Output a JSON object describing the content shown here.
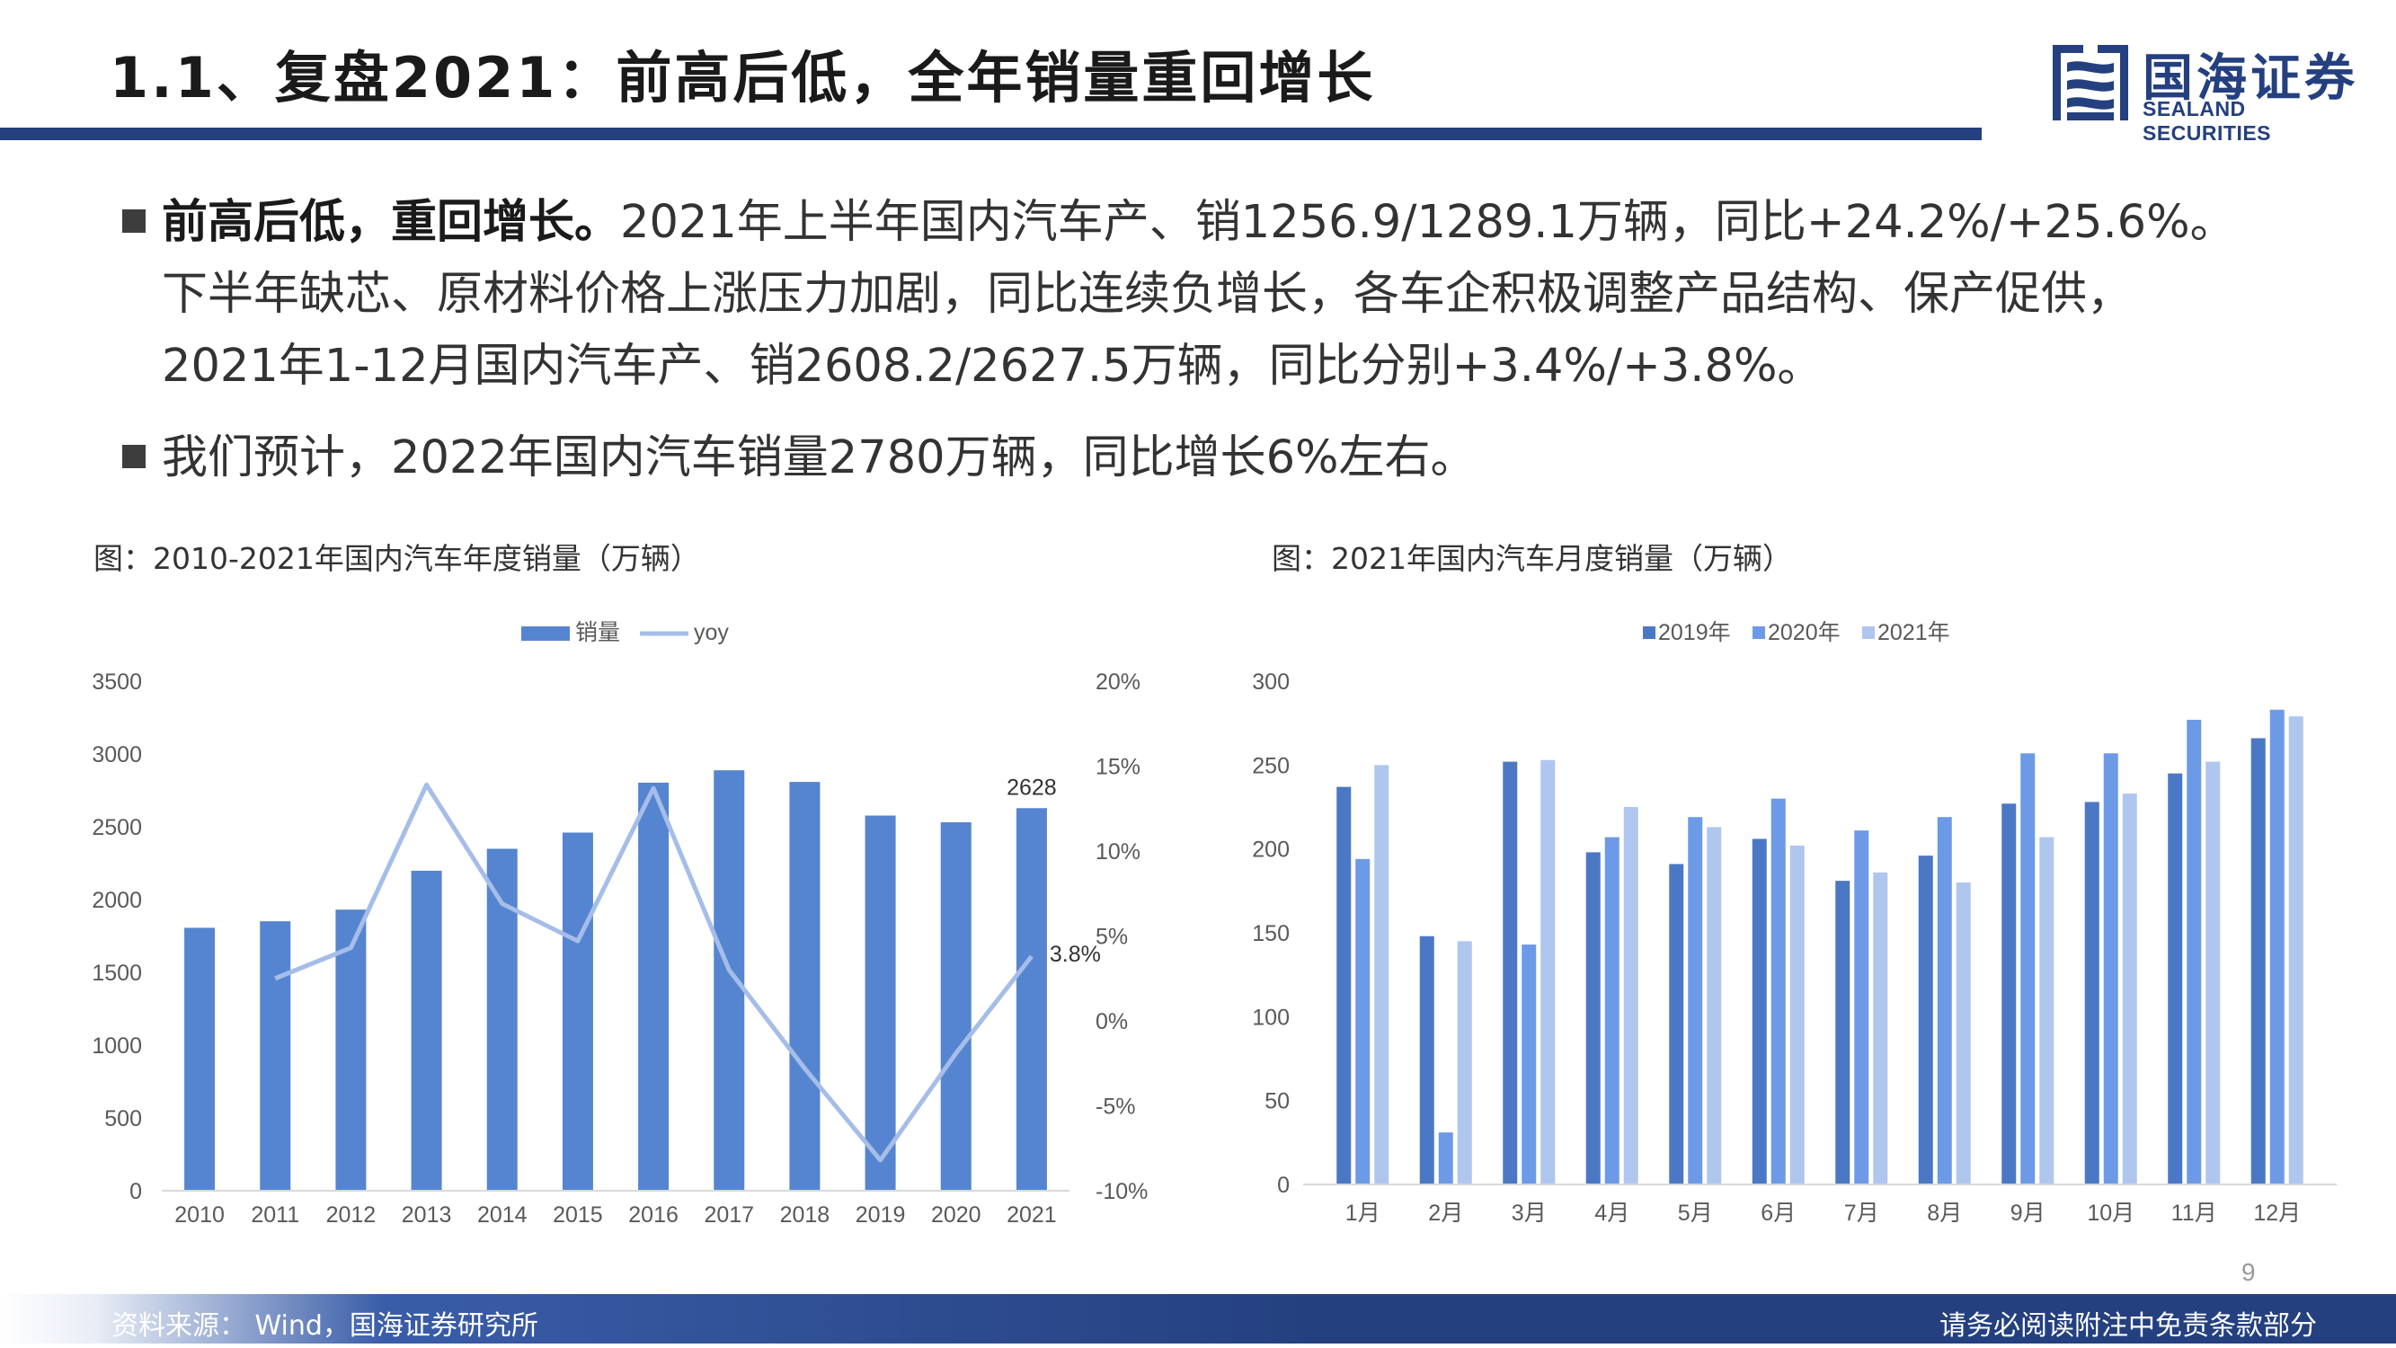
{
  "header": {
    "title": "1.1、复盘2021：前高后低，全年销量重回增长",
    "logo_cn": "国海证券",
    "logo_en": "SEALAND SECURITIES"
  },
  "bullets": [
    {
      "lead": "前高后低，重回增长。",
      "lines": [
        "2021年上半年国内汽车产、销1256.9/1289.1万辆，同比+24.2%/+25.6%。",
        "下半年缺芯、原材料价格上涨压力加剧，同比连续负增长，各车企积极调整产品结构、保产促供，",
        "2021年1-12月国内汽车产、销2608.2/2627.5万辆，同比分别+3.4%/+3.8%。"
      ]
    },
    {
      "lead": "",
      "lines": [
        "我们预计，2022年国内汽车销量2780万辆，同比增长6%左右。"
      ]
    }
  ],
  "chart_data": [
    {
      "type": "bar",
      "title": "图：2010-2021年国内汽车年度销量（万辆）",
      "categories": [
        "2010",
        "2011",
        "2012",
        "2013",
        "2014",
        "2015",
        "2016",
        "2017",
        "2018",
        "2019",
        "2020",
        "2021"
      ],
      "series": [
        {
          "name": "销量",
          "kind": "bar",
          "axis": "left",
          "color": "#5585d0",
          "values": [
            1806,
            1851,
            1931,
            2198,
            2349,
            2460,
            2803,
            2888,
            2808,
            2577,
            2531,
            2628
          ]
        },
        {
          "name": "yoy",
          "kind": "line",
          "axis": "right",
          "color": "#a5bde8",
          "values": [
            null,
            2.5,
            4.3,
            13.9,
            6.9,
            4.7,
            13.7,
            3.0,
            -2.8,
            -8.2,
            -1.9,
            3.8
          ]
        }
      ],
      "yleft": {
        "min": 0,
        "max": 3500,
        "ticks": [
          "0",
          "500",
          "1000",
          "1500",
          "2000",
          "2500",
          "3000",
          "3500"
        ]
      },
      "yright": {
        "min": -10,
        "max": 20,
        "ticks": [
          "-10%",
          "-5%",
          "0%",
          "5%",
          "10%",
          "15%",
          "20%"
        ]
      },
      "data_labels": [
        {
          "series": "销量",
          "index": 11,
          "text": "2628"
        },
        {
          "series": "yoy",
          "index": 11,
          "text": "3.8%"
        }
      ],
      "legend": "top-center",
      "grid": false
    },
    {
      "type": "bar",
      "title": "图：2021年国内汽车月度销量（万辆）",
      "categories": [
        "1月",
        "2月",
        "3月",
        "4月",
        "5月",
        "6月",
        "7月",
        "8月",
        "9月",
        "10月",
        "11月",
        "12月"
      ],
      "series": [
        {
          "name": "2019年",
          "color": "#4a78c4",
          "values": [
            237,
            148,
            252,
            198,
            191,
            206,
            181,
            196,
            227,
            228,
            245,
            266
          ]
        },
        {
          "name": "2020年",
          "color": "#6d9ae6",
          "values": [
            194,
            31,
            143,
            207,
            219,
            230,
            211,
            219,
            257,
            257,
            277,
            283
          ]
        },
        {
          "name": "2021年",
          "color": "#afc6ef",
          "values": [
            250,
            145,
            253,
            225,
            213,
            202,
            186,
            180,
            207,
            233,
            252,
            279
          ]
        }
      ],
      "yaxis": {
        "min": 0,
        "max": 300,
        "ticks": [
          "0",
          "50",
          "100",
          "150",
          "200",
          "250",
          "300"
        ]
      },
      "legend": "top-center",
      "grid": false
    }
  ],
  "footer": {
    "source": "资料来源： Wind，国海证券研究所",
    "disclaimer": "请务必阅读附注中免责条款部分",
    "page": "9"
  }
}
